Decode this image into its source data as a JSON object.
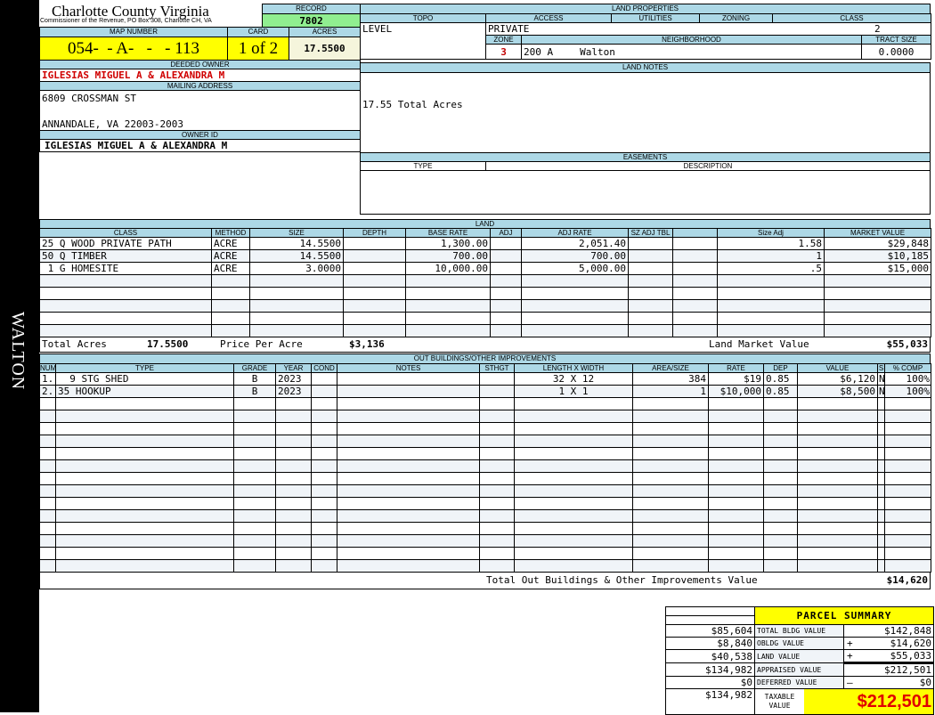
{
  "side_label": "WALTON",
  "header": {
    "county": "Charlotte County Virginia",
    "subtitle": "Commissioner of the Revenue, PO Box 308, Charlotte CH, VA",
    "record_label": "RECORD",
    "record": "7802"
  },
  "parcel": {
    "map_label": "MAP NUMBER",
    "map_number": "054-  - A-   -   - 113",
    "card_label": "CARD",
    "card": "1 of 2",
    "acres_label": "ACRES",
    "acres": "17.5500"
  },
  "owner": {
    "deeded_label": "DEEDED OWNER",
    "deeded": "IGLESIAS MIGUEL A & ALEXANDRA M",
    "mailing_label": "MAILING ADDRESS",
    "address1": "6809 CROSSMAN ST",
    "address2": "ANNANDALE, VA 22003-2003",
    "id_label": "OWNER ID",
    "owner_id": "IGLESIAS MIGUEL A & ALEXANDRA M"
  },
  "land_properties": {
    "title": "LAND PROPERTIES",
    "topo_label": "TOPO",
    "access_label": "ACCESS",
    "utilities_label": "UTILITIES",
    "zoning_label": "ZONING",
    "class_label": "CLASS",
    "topo": "LEVEL",
    "access": "PRIVATE",
    "class": "2",
    "zone_label": "ZONE",
    "neighborhood_label": "NEIGHBORHOOD",
    "tract_label": "TRACT SIZE",
    "zone": "3",
    "neighborhood_code": "200 A",
    "neighborhood": "Walton",
    "tract_size": "0.0000"
  },
  "land_notes": {
    "title": "LAND NOTES",
    "text": "17.55 Total Acres"
  },
  "easements": {
    "title": "EASEMENTS",
    "type_label": "TYPE",
    "description_label": "DESCRIPTION"
  },
  "land": {
    "title": "LAND",
    "columns": [
      "CLASS",
      "METHOD",
      "SIZE",
      "DEPTH",
      "BASE RATE",
      "ADJ",
      "ADJ RATE",
      "SZ ADJ TBL",
      "",
      "Size Adj",
      "MARKET VALUE"
    ],
    "rows": [
      [
        "25 Q WOOD PRIVATE PATH",
        "ACRE",
        "14.5500",
        "",
        "1,300.00",
        "",
        "2,051.40",
        "",
        "",
        "1.58",
        "$29,848"
      ],
      [
        "50 Q TIMBER",
        "ACRE",
        "14.5500",
        "",
        "700.00",
        "",
        "700.00",
        "",
        "",
        "1",
        "$10,185"
      ],
      [
        " 1 G HOMESITE",
        "ACRE",
        "3.0000",
        "",
        "10,000.00",
        "",
        "5,000.00",
        "",
        "",
        ".5",
        "$15,000"
      ]
    ],
    "total_acres_label": "Total Acres",
    "total_acres": "17.5500",
    "ppa_label": "Price Per Acre",
    "ppa": "$3,136",
    "market_label": "Land Market Value",
    "market": "$55,033"
  },
  "outbuildings": {
    "title": "OUT BUILDINGS/OTHER IMPROVEMENTS",
    "columns": [
      "NUM",
      "TYPE",
      "GRADE",
      "YEAR",
      "COND",
      "NOTES",
      "STHGT",
      "LENGTH X WIDTH",
      "AREA/SIZE",
      "RATE",
      "DEP",
      "VALUE",
      "S",
      "% COMP"
    ],
    "rows": [
      [
        "1.",
        "  9 STG SHED",
        "B",
        "2023",
        "",
        "",
        "",
        "32 X 12",
        "384",
        "$19",
        "0.85",
        "$6,120",
        "N",
        "100%"
      ],
      [
        "2.",
        "35 HOOKUP",
        "B",
        "2023",
        "",
        "",
        "",
        "1 X 1",
        "1",
        "$10,000",
        "0.85",
        "$8,500",
        "N",
        "100%"
      ]
    ],
    "total_label": "Total Out Buildings & Other Improvements Value",
    "total": "$14,620"
  },
  "summary": {
    "title": "PARCEL SUMMARY",
    "rows": [
      {
        "left": "$85,604",
        "label": "TOTAL BLDG VALUE",
        "sign": "",
        "value": "$142,848"
      },
      {
        "left": "$8,840",
        "label": "OBLDG VALUE",
        "sign": "+",
        "value": "$14,620"
      },
      {
        "left": "$40,538",
        "label": "LAND VALUE",
        "sign": "+",
        "value": "$55,033"
      },
      {
        "left": "$134,982",
        "label": "APPRAISED VALUE",
        "sign": "",
        "value": "$212,501"
      },
      {
        "left": "$0",
        "label": "DEFERRED VALUE",
        "sign": "–",
        "value": "$0"
      }
    ],
    "taxable_left": "$134,982",
    "taxable_label": "TAXABLE VALUE",
    "taxable": "$212,501"
  },
  "colors": {
    "header_blue": "#add8e6",
    "highlight_yellow": "#ffff00",
    "record_green": "#90ee90",
    "owner_red": "#d00000"
  }
}
